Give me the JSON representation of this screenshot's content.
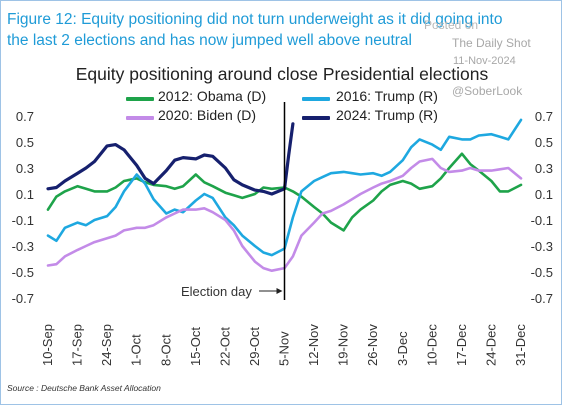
{
  "figure_title": "Figure 12: Equity positioning did not turn underweight as it did going into the last 2 elections and has now jumped well above neutral",
  "watermark": {
    "posted": "Posted on",
    "site": "The Daily Shot",
    "date": "11-Nov-2024",
    "handle": "@SoberLook"
  },
  "source": "Source : Deutsche Bank Asset Allocation",
  "annotation": "Election day",
  "colors": {
    "2012": "#1ea34a",
    "2016": "#1ea8e0",
    "2020": "#c38be8",
    "2024": "#16206e"
  },
  "chart_data": {
    "type": "line",
    "title": "Equity positioning around close Presidential elections",
    "xlabel": "",
    "ylabel": "",
    "ylim": [
      -0.7,
      0.7
    ],
    "yticks": [
      0.7,
      0.5,
      0.3,
      0.1,
      -0.1,
      -0.3,
      -0.5,
      -0.7
    ],
    "ytick_labels": [
      "0.7",
      "0.5",
      "0.3",
      "0.1",
      "-0.1",
      "-0.3",
      "-0.5",
      "-0.7"
    ],
    "x_labels": [
      "10-Sep",
      "17-Sep",
      "24-Sep",
      "1-Oct",
      "8-Oct",
      "15-Oct",
      "22-Oct",
      "29-Oct",
      "5-Nov",
      "12-Nov",
      "19-Nov",
      "26-Nov",
      "3-Dec",
      "10-Dec",
      "17-Dec",
      "24-Dec",
      "31-Dec"
    ],
    "election_day": "5-Nov",
    "grid": false,
    "legend_position": "top",
    "series": [
      {
        "name": "2012: Obama (D)",
        "points": [
          [
            "10-Sep",
            -0.02
          ],
          [
            "12-Sep",
            0.08
          ],
          [
            "14-Sep",
            0.12
          ],
          [
            "17-Sep",
            0.16
          ],
          [
            "19-Sep",
            0.14
          ],
          [
            "21-Sep",
            0.12
          ],
          [
            "24-Sep",
            0.12
          ],
          [
            "26-Sep",
            0.15
          ],
          [
            "28-Sep",
            0.2
          ],
          [
            "1-Oct",
            0.22
          ],
          [
            "3-Oct",
            0.19
          ],
          [
            "5-Oct",
            0.17
          ],
          [
            "8-Oct",
            0.16
          ],
          [
            "10-Oct",
            0.14
          ],
          [
            "12-Oct",
            0.16
          ],
          [
            "15-Oct",
            0.25
          ],
          [
            "17-Oct",
            0.19
          ],
          [
            "19-Oct",
            0.16
          ],
          [
            "22-Oct",
            0.11
          ],
          [
            "24-Oct",
            0.09
          ],
          [
            "26-Oct",
            0.07
          ],
          [
            "29-Oct",
            0.1
          ],
          [
            "31-Oct",
            0.15
          ],
          [
            "2-Nov",
            0.14
          ],
          [
            "5-Nov",
            0.15
          ],
          [
            "7-Nov",
            0.12
          ],
          [
            "9-Nov",
            0.08
          ],
          [
            "12-Nov",
            0.0
          ],
          [
            "14-Nov",
            -0.05
          ],
          [
            "16-Nov",
            -0.12
          ],
          [
            "19-Nov",
            -0.18
          ],
          [
            "21-Nov",
            -0.08
          ],
          [
            "23-Nov",
            -0.02
          ],
          [
            "26-Nov",
            0.05
          ],
          [
            "28-Nov",
            0.12
          ],
          [
            "30-Nov",
            0.17
          ],
          [
            "3-Dec",
            0.2
          ],
          [
            "5-Dec",
            0.18
          ],
          [
            "7-Dec",
            0.14
          ],
          [
            "10-Dec",
            0.16
          ],
          [
            "12-Dec",
            0.22
          ],
          [
            "14-Dec",
            0.3
          ],
          [
            "17-Dec",
            0.41
          ],
          [
            "19-Dec",
            0.33
          ],
          [
            "21-Dec",
            0.28
          ],
          [
            "24-Dec",
            0.2
          ],
          [
            "26-Dec",
            0.12
          ],
          [
            "28-Dec",
            0.12
          ],
          [
            "31-Dec",
            0.17
          ]
        ]
      },
      {
        "name": "2016: Trump (R)",
        "points": [
          [
            "10-Sep",
            -0.22
          ],
          [
            "12-Sep",
            -0.26
          ],
          [
            "14-Sep",
            -0.16
          ],
          [
            "17-Sep",
            -0.12
          ],
          [
            "19-Sep",
            -0.14
          ],
          [
            "21-Sep",
            -0.1
          ],
          [
            "24-Sep",
            -0.07
          ],
          [
            "26-Sep",
            0.0
          ],
          [
            "28-Sep",
            0.12
          ],
          [
            "1-Oct",
            0.25
          ],
          [
            "3-Oct",
            0.18
          ],
          [
            "5-Oct",
            0.06
          ],
          [
            "8-Oct",
            -0.05
          ],
          [
            "10-Oct",
            -0.02
          ],
          [
            "12-Oct",
            -0.04
          ],
          [
            "15-Oct",
            0.05
          ],
          [
            "17-Oct",
            0.1
          ],
          [
            "19-Oct",
            0.07
          ],
          [
            "22-Oct",
            -0.08
          ],
          [
            "24-Oct",
            -0.14
          ],
          [
            "26-Oct",
            -0.22
          ],
          [
            "29-Oct",
            -0.3
          ],
          [
            "31-Oct",
            -0.35
          ],
          [
            "2-Nov",
            -0.37
          ],
          [
            "5-Nov",
            -0.32
          ],
          [
            "7-Nov",
            -0.08
          ],
          [
            "9-Nov",
            0.12
          ],
          [
            "12-Nov",
            0.2
          ],
          [
            "14-Nov",
            0.23
          ],
          [
            "16-Nov",
            0.26
          ],
          [
            "19-Nov",
            0.27
          ],
          [
            "21-Nov",
            0.26
          ],
          [
            "23-Nov",
            0.25
          ],
          [
            "26-Nov",
            0.26
          ],
          [
            "28-Nov",
            0.24
          ],
          [
            "30-Nov",
            0.27
          ],
          [
            "3-Dec",
            0.36
          ],
          [
            "5-Dec",
            0.46
          ],
          [
            "7-Dec",
            0.52
          ],
          [
            "10-Dec",
            0.48
          ],
          [
            "12-Dec",
            0.44
          ],
          [
            "14-Dec",
            0.54
          ],
          [
            "17-Dec",
            0.52
          ],
          [
            "19-Dec",
            0.52
          ],
          [
            "21-Dec",
            0.55
          ],
          [
            "24-Dec",
            0.56
          ],
          [
            "26-Dec",
            0.54
          ],
          [
            "28-Dec",
            0.52
          ],
          [
            "31-Dec",
            0.67
          ]
        ]
      },
      {
        "name": "2020: Biden (D)",
        "points": [
          [
            "10-Sep",
            -0.45
          ],
          [
            "12-Sep",
            -0.44
          ],
          [
            "14-Sep",
            -0.38
          ],
          [
            "17-Sep",
            -0.33
          ],
          [
            "19-Sep",
            -0.3
          ],
          [
            "21-Sep",
            -0.27
          ],
          [
            "24-Sep",
            -0.24
          ],
          [
            "26-Sep",
            -0.22
          ],
          [
            "28-Sep",
            -0.18
          ],
          [
            "1-Oct",
            -0.16
          ],
          [
            "3-Oct",
            -0.16
          ],
          [
            "5-Oct",
            -0.14
          ],
          [
            "8-Oct",
            -0.08
          ],
          [
            "10-Oct",
            -0.05
          ],
          [
            "12-Oct",
            -0.02
          ],
          [
            "15-Oct",
            -0.02
          ],
          [
            "17-Oct",
            -0.01
          ],
          [
            "19-Oct",
            -0.04
          ],
          [
            "22-Oct",
            -0.1
          ],
          [
            "24-Oct",
            -0.18
          ],
          [
            "26-Oct",
            -0.3
          ],
          [
            "29-Oct",
            -0.42
          ],
          [
            "31-Oct",
            -0.47
          ],
          [
            "2-Nov",
            -0.49
          ],
          [
            "5-Nov",
            -0.47
          ],
          [
            "7-Nov",
            -0.38
          ],
          [
            "9-Nov",
            -0.22
          ],
          [
            "12-Nov",
            -0.12
          ],
          [
            "14-Nov",
            -0.05
          ],
          [
            "16-Nov",
            -0.03
          ],
          [
            "19-Nov",
            0.02
          ],
          [
            "21-Nov",
            0.06
          ],
          [
            "23-Nov",
            0.1
          ],
          [
            "26-Nov",
            0.15
          ],
          [
            "28-Nov",
            0.18
          ],
          [
            "30-Nov",
            0.2
          ],
          [
            "3-Dec",
            0.24
          ],
          [
            "5-Dec",
            0.3
          ],
          [
            "7-Dec",
            0.35
          ],
          [
            "10-Dec",
            0.37
          ],
          [
            "12-Dec",
            0.3
          ],
          [
            "14-Dec",
            0.27
          ],
          [
            "17-Dec",
            0.28
          ],
          [
            "19-Dec",
            0.3
          ],
          [
            "21-Dec",
            0.28
          ],
          [
            "24-Dec",
            0.28
          ],
          [
            "26-Dec",
            0.29
          ],
          [
            "28-Dec",
            0.3
          ],
          [
            "31-Dec",
            0.22
          ]
        ]
      },
      {
        "name": "2024: Trump (R)",
        "points": [
          [
            "10-Sep",
            0.14
          ],
          [
            "12-Sep",
            0.15
          ],
          [
            "14-Sep",
            0.2
          ],
          [
            "17-Sep",
            0.26
          ],
          [
            "19-Sep",
            0.3
          ],
          [
            "21-Sep",
            0.35
          ],
          [
            "24-Sep",
            0.47
          ],
          [
            "26-Sep",
            0.48
          ],
          [
            "28-Sep",
            0.44
          ],
          [
            "1-Oct",
            0.32
          ],
          [
            "3-Oct",
            0.22
          ],
          [
            "5-Oct",
            0.18
          ],
          [
            "8-Oct",
            0.28
          ],
          [
            "10-Oct",
            0.36
          ],
          [
            "12-Oct",
            0.38
          ],
          [
            "15-Oct",
            0.37
          ],
          [
            "17-Oct",
            0.4
          ],
          [
            "19-Oct",
            0.39
          ],
          [
            "22-Oct",
            0.3
          ],
          [
            "24-Oct",
            0.21
          ],
          [
            "26-Oct",
            0.17
          ],
          [
            "29-Oct",
            0.13
          ],
          [
            "31-Oct",
            0.12
          ],
          [
            "2-Nov",
            0.1
          ],
          [
            "5-Nov",
            0.14
          ],
          [
            "6-Nov",
            0.4
          ],
          [
            "7-Nov",
            0.64
          ]
        ]
      }
    ]
  }
}
